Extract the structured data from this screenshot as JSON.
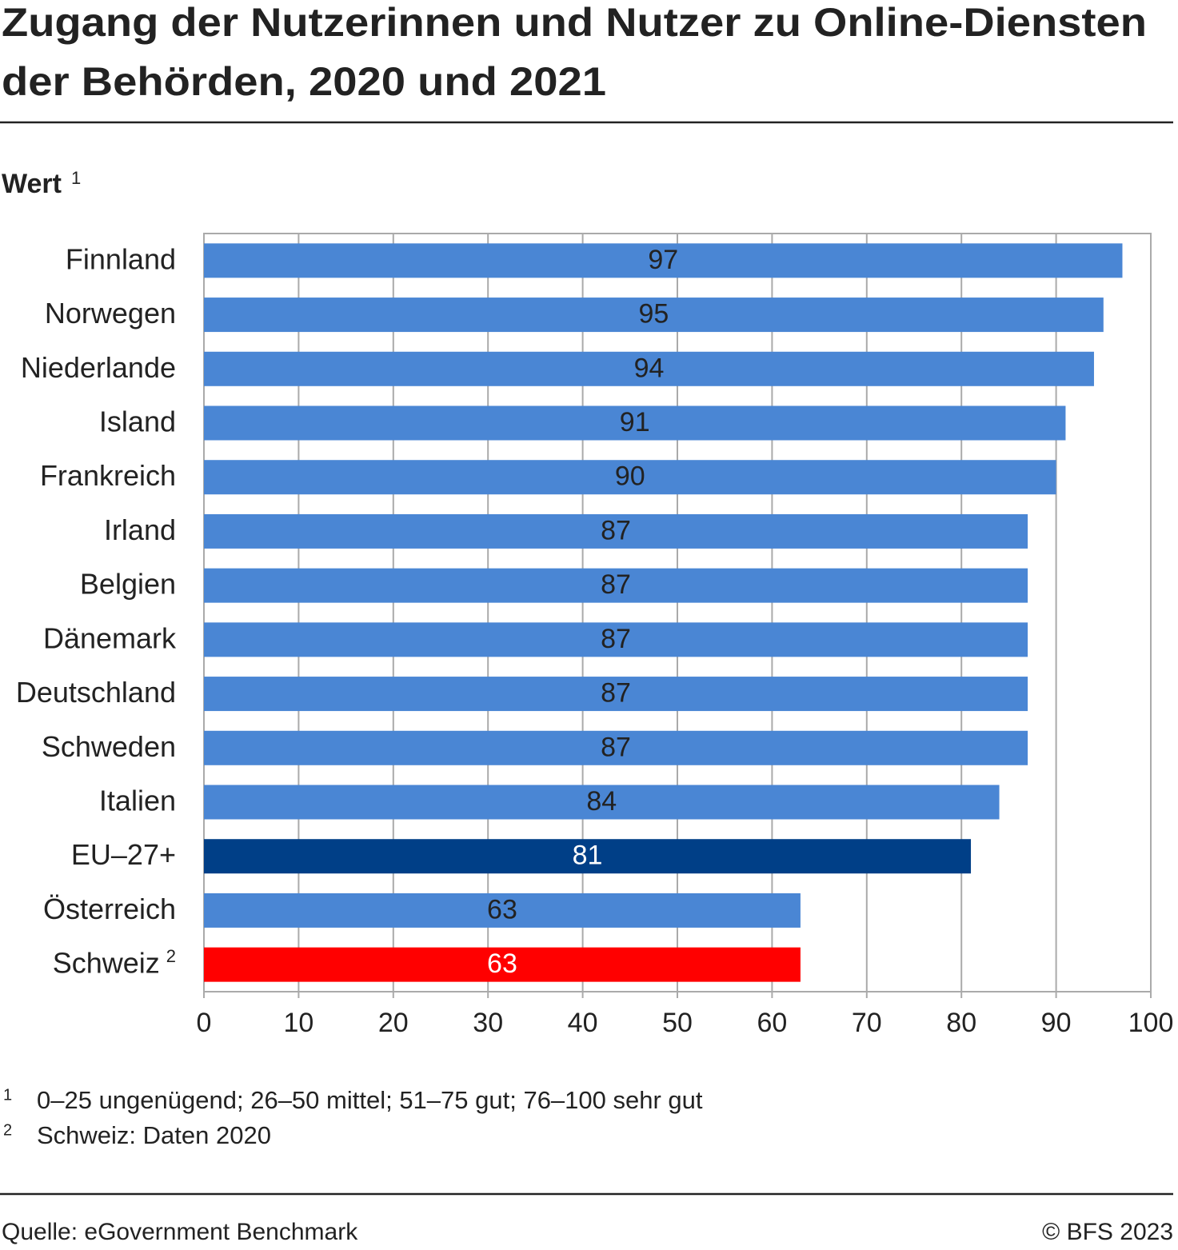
{
  "chart_data": {
    "type": "barh",
    "title": [
      "Zugang der Nutzerinnen und Nutzer zu Online-Diensten",
      "der Behörden, 2020 und 2021"
    ],
    "value_axis_label": "Wert",
    "value_axis_label_note": "1",
    "categories": [
      "Finnland",
      "Norwegen",
      "Niederlande",
      "Island",
      "Frankreich",
      "Irland",
      "Belgien",
      "Dänemark",
      "Deutschland",
      "Schweden",
      "Italien",
      "EU–27+",
      "Österreich",
      "Schweiz"
    ],
    "category_notes": [
      null,
      null,
      null,
      null,
      null,
      null,
      null,
      null,
      null,
      null,
      null,
      null,
      null,
      "2"
    ],
    "values": [
      97,
      95,
      94,
      91,
      90,
      87,
      87,
      87,
      87,
      87,
      84,
      81,
      63,
      63
    ],
    "colors": [
      "#4a86d4",
      "#4a86d4",
      "#4a86d4",
      "#4a86d4",
      "#4a86d4",
      "#4a86d4",
      "#4a86d4",
      "#4a86d4",
      "#4a86d4",
      "#4a86d4",
      "#4a86d4",
      "#003f87",
      "#4a86d4",
      "#ff0000"
    ],
    "value_label_colors": [
      "#222222",
      "#222222",
      "#222222",
      "#222222",
      "#222222",
      "#222222",
      "#222222",
      "#222222",
      "#222222",
      "#222222",
      "#222222",
      "#ffffff",
      "#222222",
      "#ffffff"
    ],
    "xlim": [
      0,
      100
    ],
    "xticks": [
      0,
      10,
      20,
      30,
      40,
      50,
      60,
      70,
      80,
      90,
      100
    ],
    "grid": true,
    "footnotes": [
      {
        "marker": "1",
        "text": "0–25 ungenügend; 26–50 mittel; 51–75 gut; 76–100 sehr gut"
      },
      {
        "marker": "2",
        "text": "Schweiz: Daten 2020"
      }
    ],
    "source": "Quelle: eGovernment Benchmark",
    "copyright": "© BFS 2023"
  }
}
